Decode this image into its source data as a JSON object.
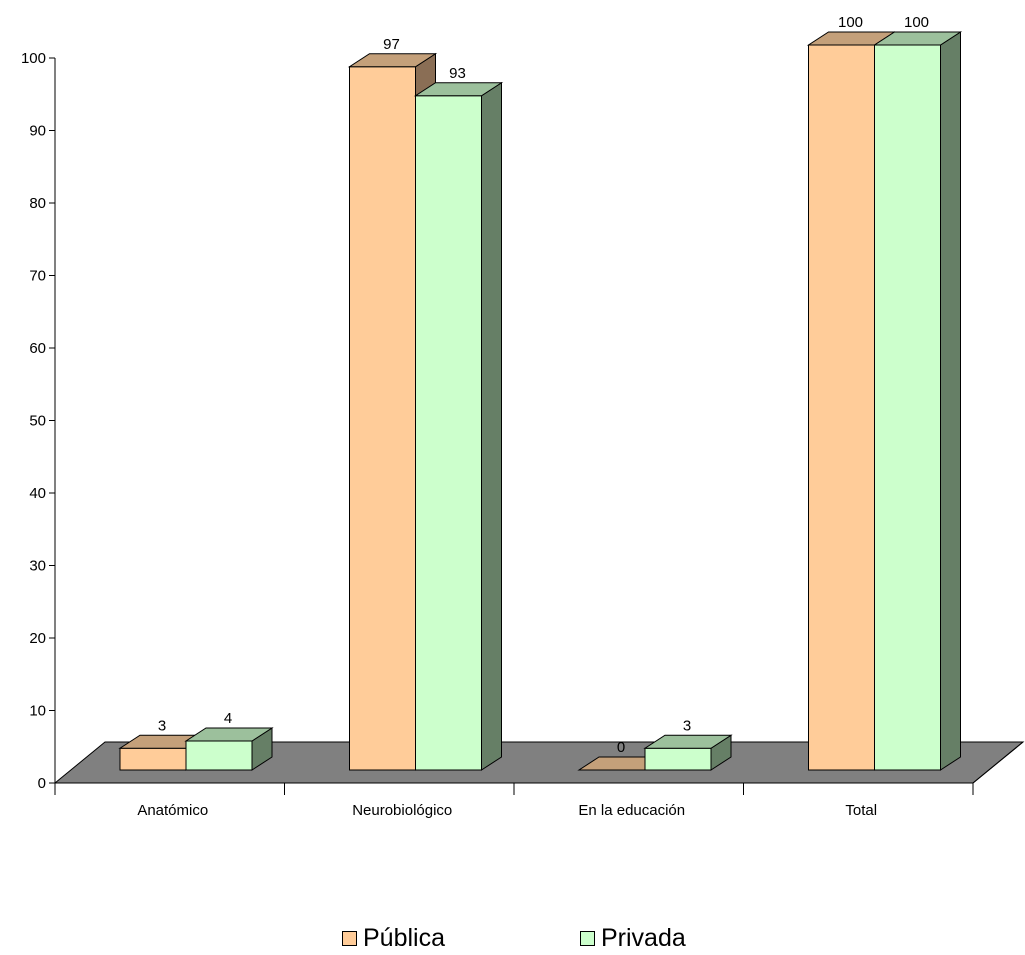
{
  "chart_data": {
    "type": "bar",
    "categories": [
      "Anatómico",
      "Neurobiológico",
      "En la educación",
      "Total"
    ],
    "series": [
      {
        "name": "Pública",
        "values": [
          3,
          97,
          0,
          100
        ],
        "color": "#FFCC99",
        "top_color": "#C4A07A",
        "side_color": "#8A6E55"
      },
      {
        "name": "Privada",
        "values": [
          4,
          93,
          3,
          100
        ],
        "color": "#CCFFCC",
        "top_color": "#9CC09C",
        "side_color": "#667F66"
      }
    ],
    "ylim": [
      0,
      100
    ],
    "yticks": [
      0,
      10,
      20,
      30,
      40,
      50,
      60,
      70,
      80,
      90,
      100
    ],
    "floor_color": "#808080",
    "grid": false,
    "legend_position": "bottom",
    "style": "3d-clustered-column"
  }
}
